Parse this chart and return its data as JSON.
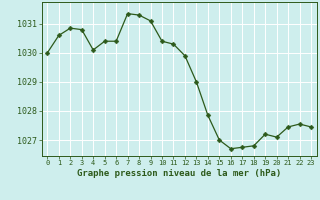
{
  "x": [
    0,
    1,
    2,
    3,
    4,
    5,
    6,
    7,
    8,
    9,
    10,
    11,
    12,
    13,
    14,
    15,
    16,
    17,
    18,
    19,
    20,
    21,
    22,
    23
  ],
  "y": [
    1030.0,
    1030.6,
    1030.85,
    1030.8,
    1030.1,
    1030.4,
    1030.4,
    1031.35,
    1031.3,
    1031.1,
    1030.4,
    1030.3,
    1029.9,
    1029.0,
    1027.85,
    1027.0,
    1026.7,
    1026.75,
    1026.8,
    1027.2,
    1027.1,
    1027.45,
    1027.55,
    1027.45
  ],
  "line_color": "#2d5a1b",
  "marker": "D",
  "marker_size": 2.5,
  "bg_color": "#ceeeed",
  "grid_color": "#ffffff",
  "xlabel": "Graphe pression niveau de la mer (hPa)",
  "xlabel_color": "#2d5a1b",
  "tick_color": "#2d5a1b",
  "ylim": [
    1026.45,
    1031.75
  ],
  "yticks": [
    1027,
    1028,
    1029,
    1030,
    1031
  ],
  "xticks": [
    0,
    1,
    2,
    3,
    4,
    5,
    6,
    7,
    8,
    9,
    10,
    11,
    12,
    13,
    14,
    15,
    16,
    17,
    18,
    19,
    20,
    21,
    22,
    23
  ]
}
